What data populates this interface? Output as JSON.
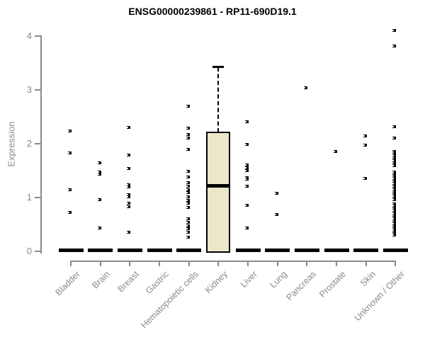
{
  "chart_data": {
    "type": "boxplot-scatter",
    "title": "ENSG00000239861 - RP11-690D19.1",
    "ylabel": "Expression",
    "ylim": [
      0,
      4.2
    ],
    "yticks": [
      0,
      1,
      2,
      3,
      4
    ],
    "grid": false,
    "legend": false,
    "categories": [
      "Bladder",
      "Brain",
      "Breast",
      "Gastric",
      "Hematopoietic cells",
      "Kidney",
      "Liver",
      "Lung",
      "Pancreas",
      "Prostate",
      "Skin",
      "Unknown / Other"
    ],
    "series": [
      {
        "name": "Bladder",
        "zero_bar": true,
        "points": [
          2.24,
          1.83,
          1.14,
          0.72
        ]
      },
      {
        "name": "Brain",
        "zero_bar": true,
        "points": [
          1.64,
          1.47,
          1.43,
          0.96,
          0.44
        ]
      },
      {
        "name": "Breast",
        "zero_bar": true,
        "points": [
          2.3,
          1.79,
          1.54,
          1.24,
          1.2,
          1.05,
          1.01,
          0.89,
          0.83,
          0.35
        ]
      },
      {
        "name": "Gastric",
        "zero_bar": true,
        "points": []
      },
      {
        "name": "Hematopoietic cells",
        "zero_bar": true,
        "points": [
          2.7,
          2.29,
          2.17,
          2.11,
          1.89,
          1.49,
          1.38,
          1.27,
          1.21,
          1.15,
          1.09,
          1.01,
          0.95,
          0.89,
          0.82,
          0.6,
          0.54,
          0.48,
          0.42,
          0.35,
          0.26
        ]
      },
      {
        "name": "Kidney",
        "zero_bar": false,
        "points": []
      },
      {
        "name": "Liver",
        "zero_bar": true,
        "points": [
          2.41,
          1.99,
          1.6,
          1.55,
          1.5,
          1.37,
          1.34,
          1.21,
          0.85,
          0.44
        ]
      },
      {
        "name": "Lung",
        "zero_bar": true,
        "points": [
          1.08,
          0.69
        ]
      },
      {
        "name": "Pancreas",
        "zero_bar": true,
        "points": [
          3.04
        ]
      },
      {
        "name": "Prostate",
        "zero_bar": true,
        "points": [
          1.85
        ]
      },
      {
        "name": "Skin",
        "zero_bar": true,
        "points": [
          2.14,
          1.98,
          1.36
        ]
      },
      {
        "name": "Unknown / Other",
        "zero_bar": true,
        "points": [
          4.1,
          3.81,
          2.32,
          2.11,
          1.86,
          1.83,
          1.8,
          1.77,
          1.74,
          1.71,
          1.68,
          1.65,
          1.62,
          1.59,
          1.47,
          1.44,
          1.41,
          1.38,
          1.35,
          1.32,
          1.29,
          1.26,
          1.23,
          1.2,
          1.17,
          1.14,
          1.11,
          1.08,
          1.05,
          1.02,
          0.99,
          0.96,
          0.88,
          0.85,
          0.82,
          0.79,
          0.76,
          0.73,
          0.7,
          0.66,
          0.63,
          0.6,
          0.57,
          0.54,
          0.51,
          0.48,
          0.45,
          0.42,
          0.39,
          0.36,
          0.33,
          0.3
        ]
      }
    ],
    "box": {
      "category": "Kidney",
      "q1": 0,
      "median": 1.23,
      "q3": 2.21,
      "whisker_low": 0,
      "whisker_high": 3.42
    },
    "colors": {
      "title": "#000000",
      "axis": "#8a8a8a",
      "tick_label": "#8a8a8a",
      "point": "#000000",
      "box_fill": "#ECE7CB",
      "box_border": "#000000"
    }
  }
}
